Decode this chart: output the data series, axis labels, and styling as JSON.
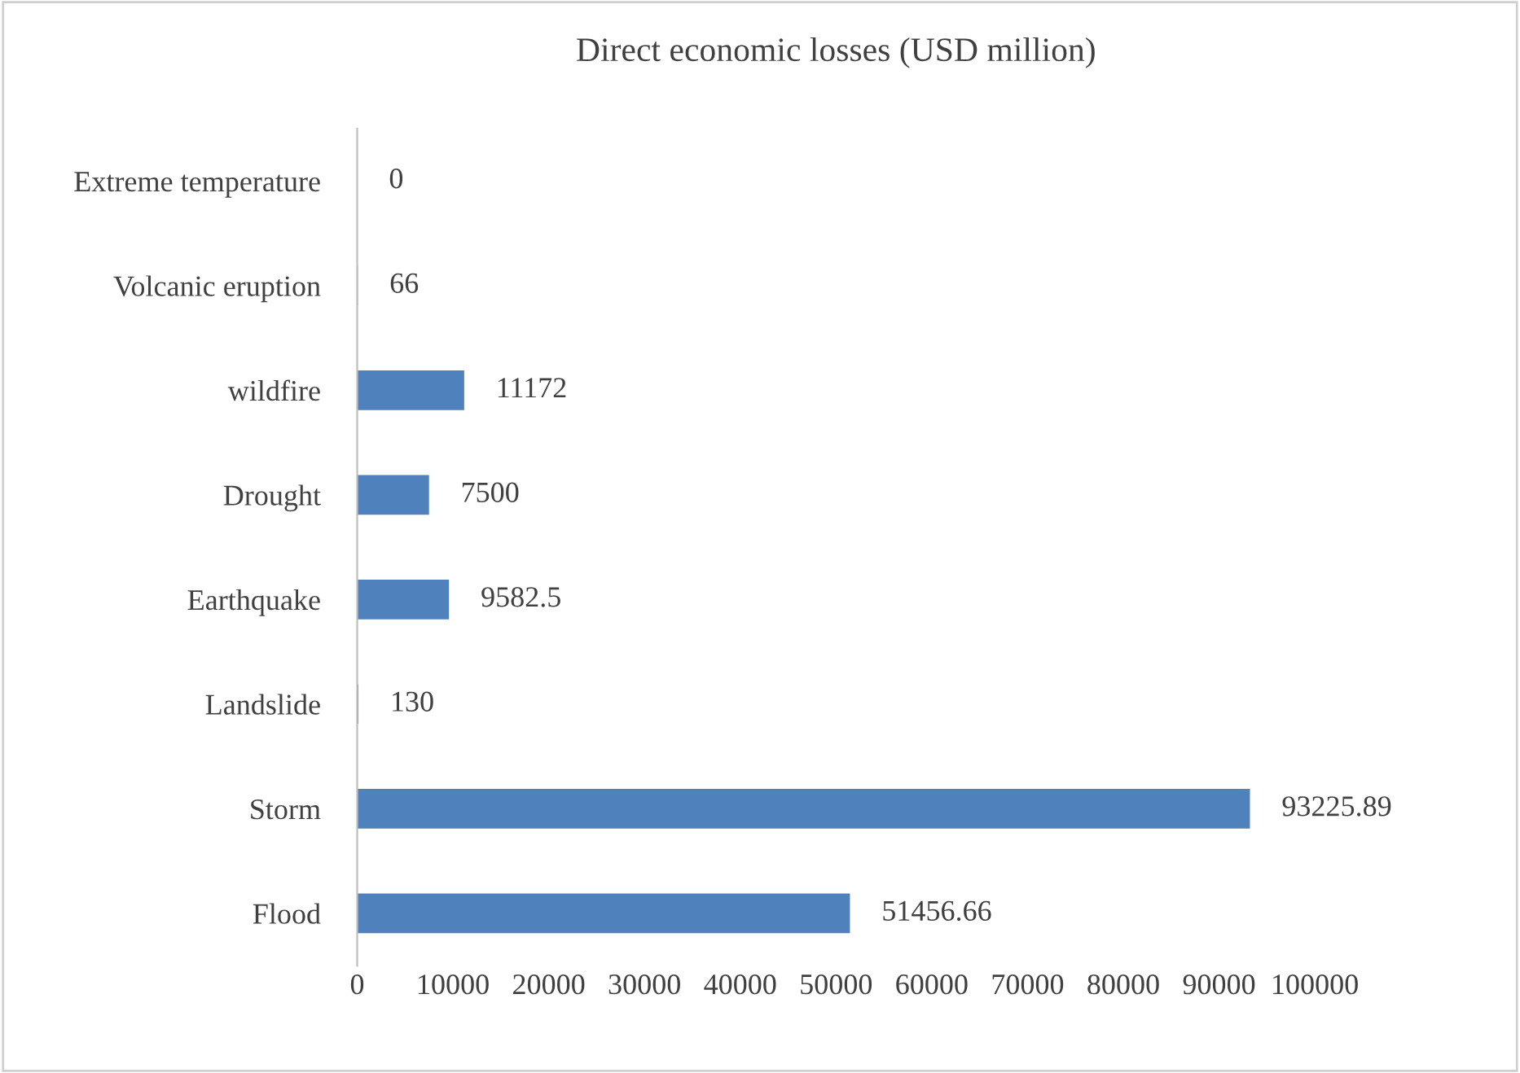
{
  "chart_data": {
    "type": "bar",
    "orientation": "horizontal",
    "title": "Direct economic losses (USD million)",
    "categories": [
      "Extreme temperature",
      "Volcanic eruption",
      "wildfire",
      "Drought",
      "Earthquake",
      "Landslide",
      "Storm",
      "Flood"
    ],
    "values": [
      0,
      66,
      11172,
      7500,
      9582.5,
      130,
      93225.89,
      51456.66
    ],
    "color": "#4f81bd",
    "data_labels": true,
    "xlim": [
      0,
      100000
    ],
    "xticks": [
      0,
      10000,
      20000,
      30000,
      40000,
      50000,
      60000,
      70000,
      80000,
      90000,
      100000
    ],
    "grid": false
  }
}
